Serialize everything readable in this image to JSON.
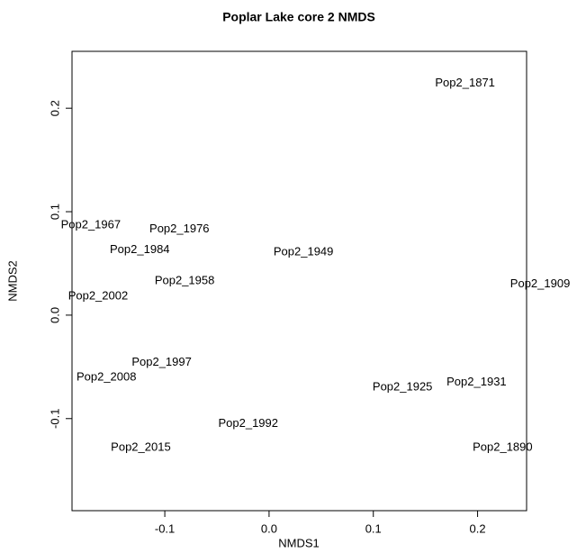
{
  "chart_data": {
    "type": "scatter",
    "title": "Poplar Lake core 2 NMDS",
    "x_label": "NMDS1",
    "y_label": "NMDS2",
    "labels": [
      "Pop2_1871",
      "Pop2_1967",
      "Pop2_1976",
      "Pop2_1984",
      "Pop2_1949",
      "Pop2_1958",
      "Pop2_1909",
      "Pop2_2002",
      "Pop2_1997",
      "Pop2_2008",
      "Pop2_1925",
      "Pop2_1931",
      "Pop2_1992",
      "Pop2_2015",
      "Pop2_1890"
    ],
    "x": [
      0.188,
      -0.171,
      -0.086,
      -0.124,
      0.033,
      -0.081,
      0.26,
      -0.164,
      -0.103,
      -0.156,
      0.128,
      0.199,
      -0.02,
      -0.123,
      0.224
    ],
    "y": [
      0.224,
      0.087,
      0.083,
      0.063,
      0.061,
      0.033,
      0.03,
      0.018,
      -0.046,
      -0.06,
      -0.07,
      -0.065,
      -0.105,
      -0.128,
      -0.128
    ],
    "xlim": [
      -0.189,
      0.247
    ],
    "ylim": [
      -0.189,
      0.255
    ],
    "xticks": [
      -0.1,
      {
        "value": 0,
        "label": "0.0"
      },
      0.1,
      0.2
    ],
    "yticks": [
      -0.1,
      {
        "value": 0,
        "label": "0.0"
      },
      0.1,
      0.2
    ],
    "color": "#000000"
  }
}
